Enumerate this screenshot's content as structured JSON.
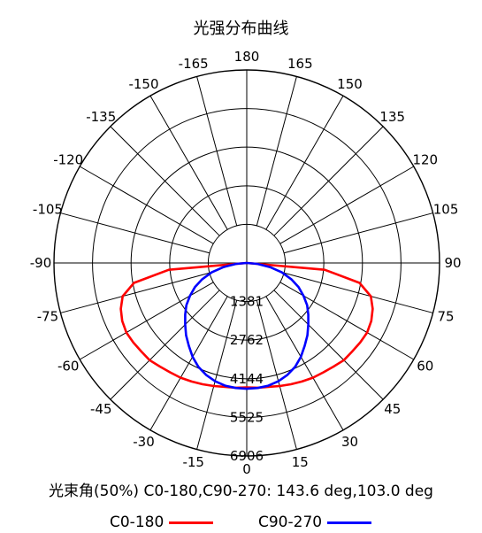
{
  "chart_data": {
    "type": "polar",
    "title": "光强分布曲线",
    "angle_labels": [
      "180",
      "165",
      "150",
      "135",
      "120",
      "105",
      "90",
      "75",
      "60",
      "45",
      "30",
      "15",
      "0",
      "-15",
      "-30",
      "-45",
      "-60",
      "-75",
      "-90",
      "-105",
      "-120",
      "-135",
      "-150",
      "-165"
    ],
    "angle_values": [
      180,
      165,
      150,
      135,
      120,
      105,
      90,
      75,
      60,
      45,
      30,
      15,
      0,
      -15,
      -30,
      -45,
      -60,
      -75,
      -90,
      -105,
      -120,
      -135,
      -150,
      -165
    ],
    "radial_ticks": [
      1381,
      2762,
      4144,
      5525,
      6906
    ],
    "radial_tick_labels": [
      "1381",
      "2762",
      "4144",
      "5525",
      "6906"
    ],
    "rmax": 6906,
    "series": [
      {
        "name": "C0-180",
        "color": "#ff0000",
        "angles": [
          0,
          5,
          10,
          15,
          20,
          25,
          30,
          35,
          40,
          45,
          50,
          55,
          60,
          65,
          70,
          75,
          80,
          85,
          90
        ],
        "values": [
          4450,
          4480,
          4500,
          4560,
          4620,
          4680,
          4740,
          4780,
          4840,
          4920,
          4930,
          4960,
          4980,
          4920,
          4800,
          4600,
          4100,
          2800,
          0
        ]
      },
      {
        "name": "C90-270",
        "color": "#0000ff",
        "angles": [
          0,
          5,
          10,
          15,
          20,
          25,
          30,
          35,
          40,
          45,
          50,
          55,
          60,
          65,
          70,
          75,
          80,
          85,
          90
        ],
        "values": [
          4500,
          4490,
          4460,
          4380,
          4260,
          4100,
          3880,
          3620,
          3380,
          3120,
          2880,
          2640,
          2350,
          2050,
          1700,
          1300,
          850,
          380,
          0
        ]
      }
    ]
  },
  "beam_angle_text": "光束角(50%) C0-180,C90-270: 143.6 deg,103.0 deg",
  "legend": {
    "items": [
      {
        "label": "C0-180",
        "color": "#ff0000"
      },
      {
        "label": "C90-270",
        "color": "#0000ff"
      }
    ]
  }
}
